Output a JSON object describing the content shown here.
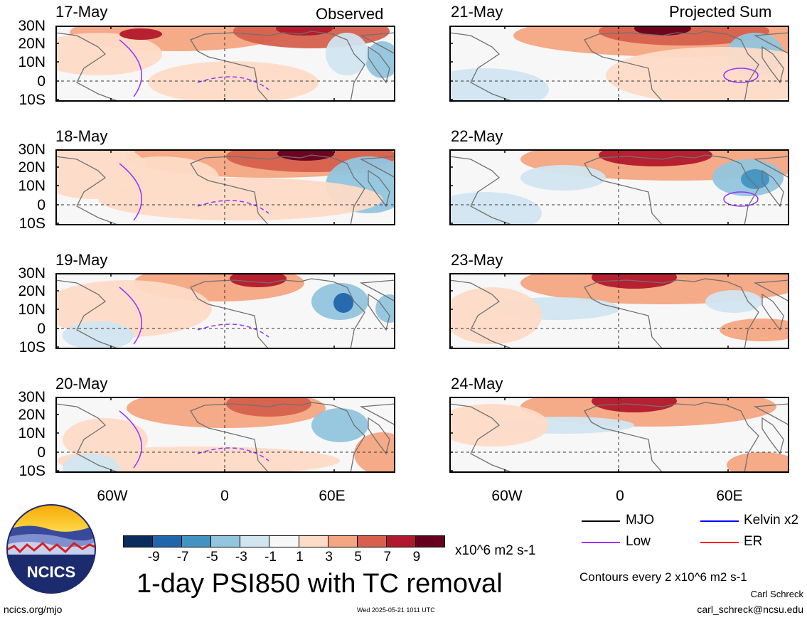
{
  "panels": [
    {
      "date": "17-May",
      "tag": "Observed"
    },
    {
      "date": "18-May",
      "tag": ""
    },
    {
      "date": "19-May",
      "tag": ""
    },
    {
      "date": "20-May",
      "tag": ""
    },
    {
      "date": "21-May",
      "tag": "Projected Sum"
    },
    {
      "date": "22-May",
      "tag": ""
    },
    {
      "date": "23-May",
      "tag": ""
    },
    {
      "date": "24-May",
      "tag": ""
    }
  ],
  "lat_labels": [
    "30N",
    "20N",
    "10N",
    "0",
    "10S"
  ],
  "lon_labels": [
    "60W",
    "0",
    "60E"
  ],
  "colorbar": {
    "colors": [
      "#0b2d5e",
      "#2166ac",
      "#4393c3",
      "#92c5de",
      "#d1e5f0",
      "#f7f7f7",
      "#fddbc7",
      "#f4a582",
      "#d6604d",
      "#b2182b",
      "#67001f"
    ],
    "labels": [
      "-9",
      "-7",
      "-5",
      "-3",
      "-1",
      "1",
      "3",
      "5",
      "7",
      "9"
    ],
    "units": "x10^6 m2 s-1"
  },
  "title": "1-day PSI850 with TC removal",
  "legend": [
    {
      "label": "MJO",
      "color": "#000000"
    },
    {
      "label": "Kelvin x2",
      "color": "#0000ff"
    },
    {
      "label": "Low",
      "color": "#9933ff"
    },
    {
      "label": "ER",
      "color": "#ff0000"
    }
  ],
  "contour_note": "Contours every 2 x10^6 m2 s-1",
  "author": "Carl Schreck",
  "email": "carl_schreck@ncsu.edu",
  "site": "ncics.org/mjo",
  "timestamp": "Wed 2025-05-21 1011 UTC",
  "logo_text": "NCICS"
}
